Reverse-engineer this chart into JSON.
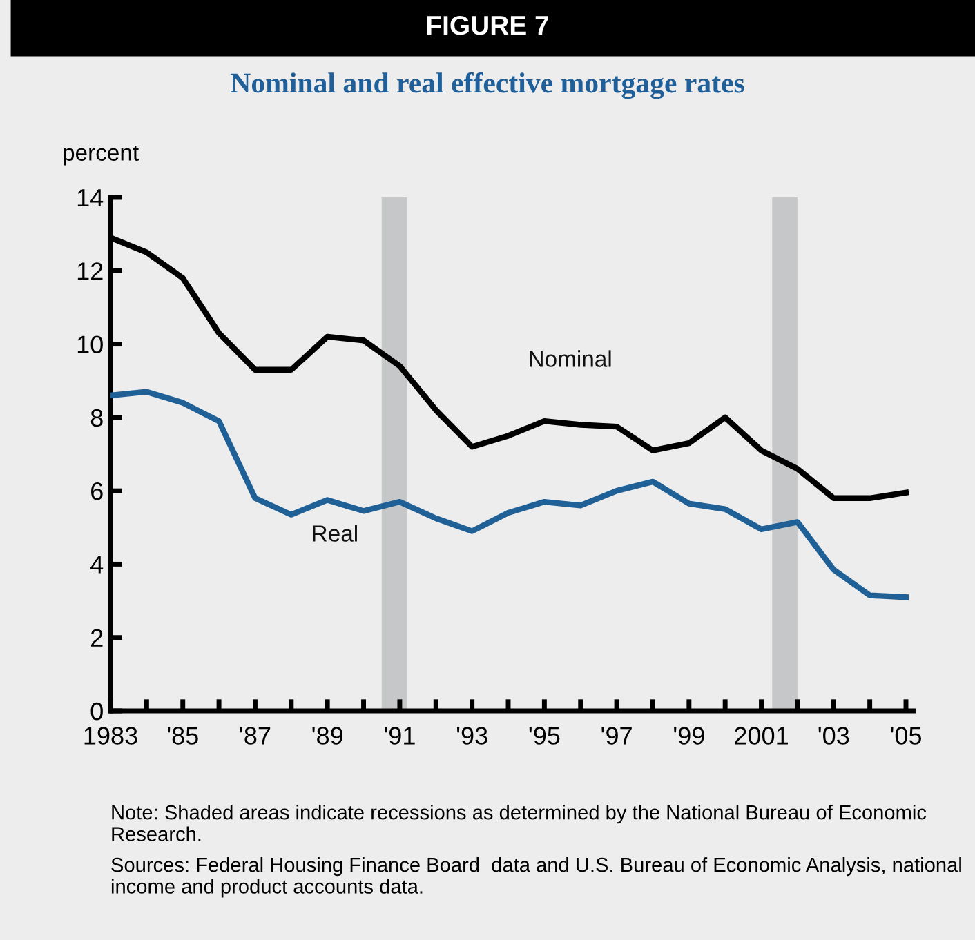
{
  "chart_data": {
    "type": "line",
    "title": "FIGURE 7",
    "subtitle": "Nominal and real effective mortgage rates",
    "ylabel": "percent",
    "x": [
      1983,
      1984,
      1985,
      1986,
      1987,
      1988,
      1989,
      1990,
      1991,
      1992,
      1993,
      1994,
      1995,
      1996,
      1997,
      1998,
      1999,
      2000,
      2001,
      2002,
      2003,
      2004,
      2005
    ],
    "series": [
      {
        "name": "Nominal",
        "color": "#000000",
        "values": [
          12.9,
          12.5,
          11.8,
          10.3,
          9.3,
          9.3,
          10.2,
          10.1,
          9.4,
          8.2,
          7.2,
          7.5,
          7.9,
          7.8,
          7.75,
          7.1,
          7.3,
          8.0,
          7.1,
          6.6,
          5.8,
          5.8,
          5.95
        ]
      },
      {
        "name": "Real",
        "color": "#1f6096",
        "values": [
          8.6,
          8.7,
          8.4,
          7.9,
          5.8,
          5.35,
          5.75,
          5.45,
          5.7,
          5.25,
          4.9,
          5.4,
          5.7,
          5.6,
          6.0,
          6.25,
          5.65,
          5.5,
          4.95,
          5.15,
          3.85,
          3.15,
          3.1
        ]
      }
    ],
    "xlim": [
      1983,
      2005.2
    ],
    "ylim": [
      0,
      14
    ],
    "yticks": [
      0,
      2,
      4,
      6,
      8,
      10,
      12,
      14
    ],
    "xticks": [
      {
        "value": 1983,
        "label": "1983"
      },
      {
        "value": 1984,
        "label": null
      },
      {
        "value": 1985,
        "label": "'85"
      },
      {
        "value": 1986,
        "label": null
      },
      {
        "value": 1987,
        "label": "'87"
      },
      {
        "value": 1988,
        "label": null
      },
      {
        "value": 1989,
        "label": "'89"
      },
      {
        "value": 1990,
        "label": null
      },
      {
        "value": 1991,
        "label": "'91"
      },
      {
        "value": 1992,
        "label": null
      },
      {
        "value": 1993,
        "label": "'93"
      },
      {
        "value": 1994,
        "label": null
      },
      {
        "value": 1995,
        "label": "'95"
      },
      {
        "value": 1996,
        "label": null
      },
      {
        "value": 1997,
        "label": "'97"
      },
      {
        "value": 1998,
        "label": null
      },
      {
        "value": 1999,
        "label": "'99"
      },
      {
        "value": 2000,
        "label": null
      },
      {
        "value": 2001,
        "label": "2001"
      },
      {
        "value": 2002,
        "label": null
      },
      {
        "value": 2003,
        "label": "'03"
      },
      {
        "value": 2004,
        "label": null
      },
      {
        "value": 2005,
        "label": "'05"
      }
    ],
    "bands": [
      {
        "axis": "x",
        "from": 1990.5,
        "to": 1991.2,
        "color": "#c6c7c9"
      },
      {
        "axis": "x",
        "from": 2001.3,
        "to": 2002.0,
        "color": "#c6c7c9"
      }
    ],
    "grid": false,
    "legend": false,
    "line_style": "solid",
    "marker": "none",
    "annotations": [
      "Note: Shaded areas indicate recessions as determined by the National Bureau of Economic Research.",
      "Sources: Federal Housing Finance Board  data and U.S. Bureau of Economic Analysis, national income and product accounts data."
    ]
  }
}
